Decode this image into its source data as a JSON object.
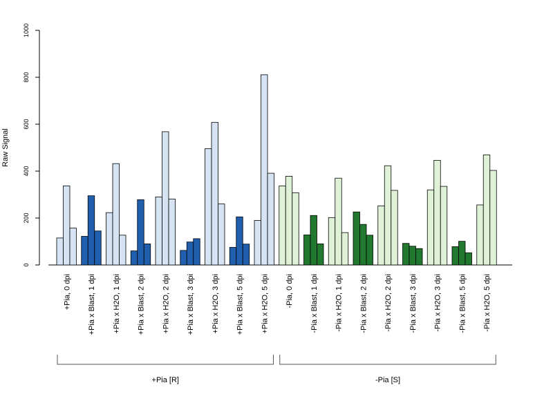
{
  "chart_data": {
    "type": "bar",
    "ylabel": "Raw Signal",
    "ylim": [
      0,
      1000
    ],
    "yticks": [
      0,
      200,
      400,
      600,
      800,
      1000
    ],
    "grid": false,
    "categories": [
      "+Pia, 0 dpi",
      "+Pia x Blast, 1 dpi",
      "+Pia x H2O, 1 dpi",
      "+Pia x Blast, 2 dpi",
      "+Pia x H2O, 2 dpi",
      "+Pia x Blast, 3 dpi",
      "+Pia x H2O, 3 dpi",
      "+Pia x Blast, 5 dpi",
      "+Pia x H2O, 5 dpi",
      "-Pia, 0 dpi",
      "-Pia x Blast, 1 dpi",
      "-Pia x H2O, 1 dpi",
      "-Pia x Blast, 2 dpi",
      "-Pia x H2O, 2 dpi",
      "-Pia x Blast, 3 dpi",
      "-Pia x H2O, 3 dpi",
      "-Pia x Blast, 5 dpi",
      "-Pia x H2O, 5 dpi"
    ],
    "replicates": [
      [
        115,
        337,
        157
      ],
      [
        122,
        295,
        145
      ],
      [
        223,
        432,
        127
      ],
      [
        60,
        278,
        90
      ],
      [
        290,
        568,
        281
      ],
      [
        62,
        98,
        112
      ],
      [
        496,
        608,
        260
      ],
      [
        75,
        205,
        89
      ],
      [
        190,
        811,
        391
      ],
      [
        337,
        378,
        308
      ],
      [
        128,
        211,
        90
      ],
      [
        202,
        370,
        138
      ],
      [
        226,
        173,
        127
      ],
      [
        252,
        423,
        318
      ],
      [
        92,
        80,
        70
      ],
      [
        320,
        446,
        335
      ],
      [
        78,
        101,
        52
      ],
      [
        256,
        469,
        403
      ]
    ],
    "bar_colors": [
      "#d5e3f3",
      "#1f5fad",
      "#d5e3f3",
      "#1f5fad",
      "#d5e3f3",
      "#1f5fad",
      "#d5e3f3",
      "#1f5fad",
      "#d5e3f3",
      "#dff2d7",
      "#21782f",
      "#dff2d7",
      "#21782f",
      "#dff2d7",
      "#21782f",
      "#dff2d7",
      "#21782f",
      "#dff2d7"
    ],
    "groups": [
      {
        "label": "+Pia [R]",
        "from": 0,
        "to": 8
      },
      {
        "label": "-Pia [S]",
        "from": 9,
        "to": 17
      }
    ]
  }
}
